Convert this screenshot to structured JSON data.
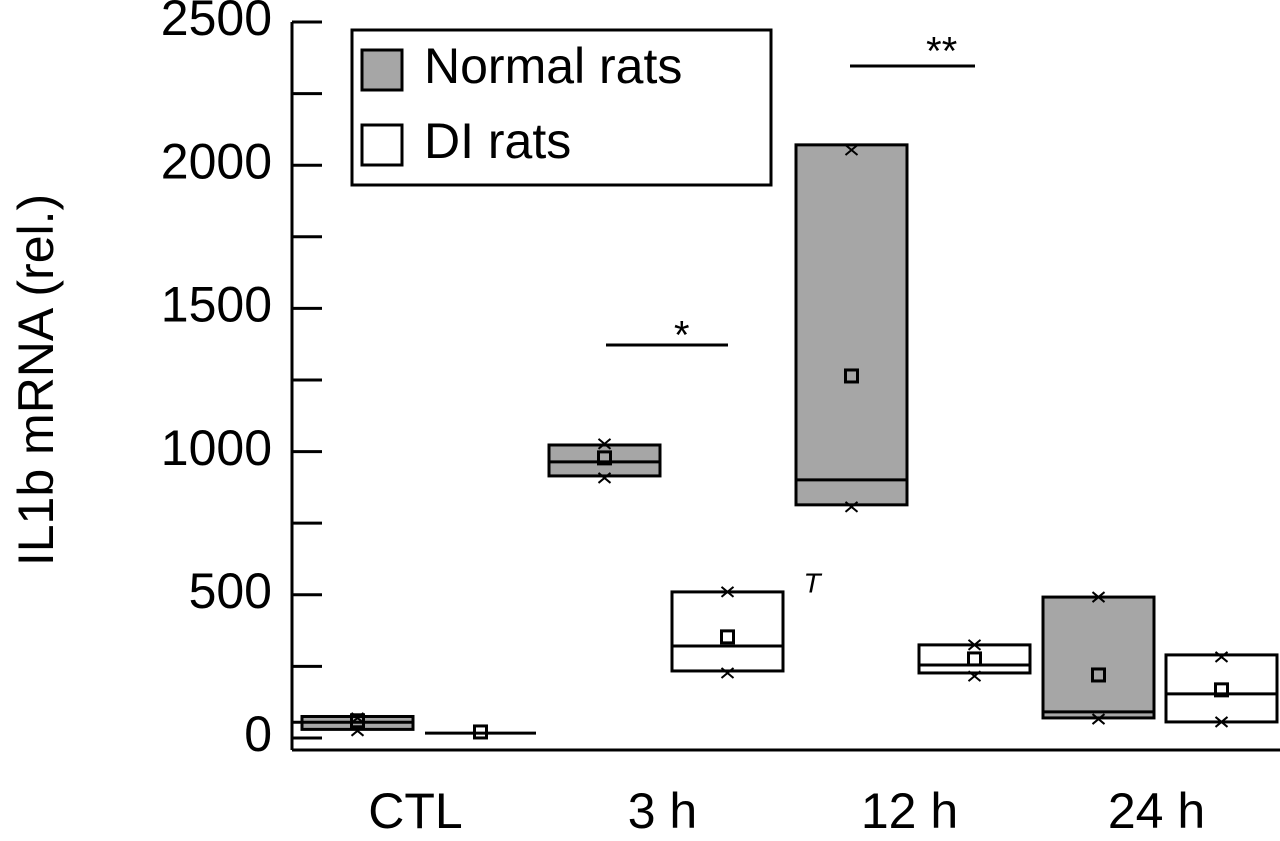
{
  "chart_data": {
    "type": "box",
    "ylabel": "IL1b mRNA (rel.)",
    "categories": [
      "CTL",
      "3 h",
      "12 h",
      "24 h"
    ],
    "series": [
      {
        "name": "Normal rats",
        "color": "#a6a6a6",
        "q1": [
          30,
          915,
          814,
          70
        ],
        "q3": [
          75,
          1023,
          2071,
          492
        ],
        "median": [
          55,
          964,
          901,
          91
        ],
        "mean": [
          60,
          978,
          1264,
          220
        ],
        "min": [
          25,
          908,
          807,
          66
        ],
        "max": [
          70,
          1027,
          2053,
          492
        ]
      },
      {
        "name": "DI rats",
        "color": "#ffffff",
        "q1": [
          17,
          234,
          227,
          56
        ],
        "q3": [
          17,
          510,
          325,
          290
        ],
        "median": [
          17,
          321,
          255,
          154
        ],
        "mean": [
          21,
          353,
          276,
          168
        ],
        "min": [
          null,
          227,
          216,
          56
        ],
        "max": [
          null,
          510,
          325,
          283
        ]
      }
    ],
    "annotations": [
      "*",
      "**",
      "T"
    ],
    "ylim": [
      -42,
      2500
    ],
    "yticks": [
      0,
      500,
      1000,
      1500,
      2000,
      2500
    ],
    "minor_yticks": [
      250,
      750,
      1250,
      1750,
      2250
    ]
  }
}
